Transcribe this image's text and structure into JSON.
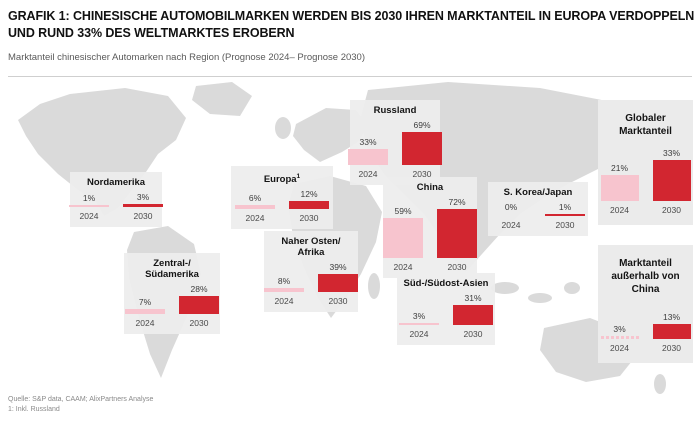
{
  "header": {
    "title": "GRAFIK 1: CHINESISCHE AUTOMOBILMARKEN WERDEN BIS 2030 IHREN MARKTANTEIL IN EUROPA VERDOPPELN UND RUND 33% DES WELTMARKTES EROBERN",
    "subtitle": "Marktanteil chinesischer Automarken nach Region (Prognose 2024– Prognose 2030)"
  },
  "footer": {
    "source": "Quelle: S&P data, CAAM; AlixPartners Analyse",
    "note": "1: Inkl. Russland"
  },
  "chart_data": {
    "type": "bar",
    "title": "Marktanteil chinesischer Automarken nach Region",
    "categories": [
      "2024",
      "2030"
    ],
    "unit": "%",
    "colors": {
      "y2024": "#f7c4ce",
      "y2030": "#d22630"
    },
    "legend": "none",
    "regions": [
      {
        "id": "nordamerika",
        "label": "Nordamerika",
        "values": [
          1,
          3
        ]
      },
      {
        "id": "zentral-suedamerika",
        "label": "Zentral-/\nSüdamerika",
        "values": [
          7,
          28
        ]
      },
      {
        "id": "europa",
        "label": "Europa",
        "label_sup": "1",
        "values": [
          6,
          12
        ]
      },
      {
        "id": "russland",
        "label": "Russland",
        "values": [
          33,
          69
        ]
      },
      {
        "id": "naher-osten-afrika",
        "label": "Naher Osten/\nAfrika",
        "values": [
          8,
          39
        ]
      },
      {
        "id": "china",
        "label": "China",
        "values": [
          59,
          72
        ]
      },
      {
        "id": "s-korea-japan",
        "label": "S. Korea/Japan",
        "values": [
          0,
          1
        ]
      },
      {
        "id": "sued-suedost-asien",
        "label": "Süd-/Südost-Asien",
        "values": [
          3,
          31
        ]
      },
      {
        "id": "globaler-marktanteil",
        "label": "Globaler\nMarktanteil",
        "values": [
          21,
          33
        ]
      },
      {
        "id": "marktanteil-ausserhalb-china",
        "label": "Marktanteil\naußerhalb von\nChina",
        "values": [
          3,
          13
        ]
      }
    ]
  }
}
